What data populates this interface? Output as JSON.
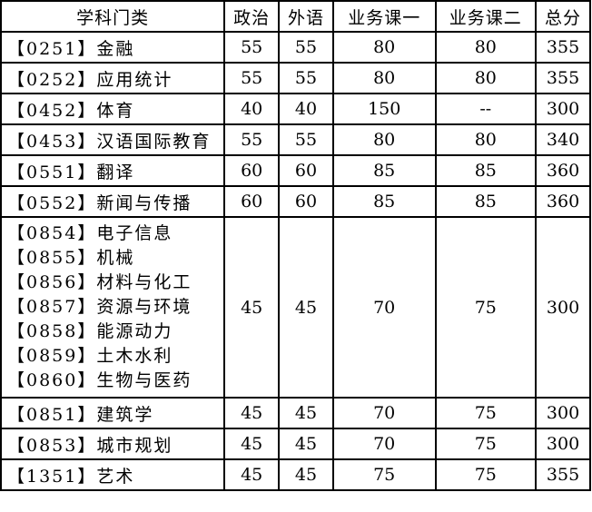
{
  "headers": [
    "学科门类",
    "政治",
    "外语",
    "业务课一",
    "业务课二",
    "总分"
  ],
  "rows": [
    {
      "categories": [
        "【0251】金融"
      ],
      "politics": "55",
      "language": "55",
      "course1": "80",
      "course2": "80",
      "total": "355"
    },
    {
      "categories": [
        "【0252】应用统计"
      ],
      "politics": "55",
      "language": "55",
      "course1": "80",
      "course2": "80",
      "total": "355"
    },
    {
      "categories": [
        "【0452】体育"
      ],
      "politics": "40",
      "language": "40",
      "course1": "150",
      "course2": "--",
      "total": "300"
    },
    {
      "categories": [
        "【0453】汉语国际教育"
      ],
      "politics": "55",
      "language": "55",
      "course1": "80",
      "course2": "80",
      "total": "340"
    },
    {
      "categories": [
        "【0551】翻译"
      ],
      "politics": "60",
      "language": "60",
      "course1": "85",
      "course2": "85",
      "total": "360"
    },
    {
      "categories": [
        "【0552】新闻与传播"
      ],
      "politics": "60",
      "language": "60",
      "course1": "85",
      "course2": "85",
      "total": "360"
    },
    {
      "categories": [
        "【0854】电子信息",
        "【0855】机械",
        "【0856】材料与化工",
        "【0857】资源与环境",
        "【0858】能源动力",
        "【0859】土木水利",
        "【0860】生物与医药"
      ],
      "politics": "45",
      "language": "45",
      "course1": "70",
      "course2": "75",
      "total": "300"
    },
    {
      "categories": [
        "【0851】建筑学"
      ],
      "politics": "45",
      "language": "45",
      "course1": "70",
      "course2": "75",
      "total": "300"
    },
    {
      "categories": [
        "【0853】城市规划"
      ],
      "politics": "45",
      "language": "45",
      "course1": "70",
      "course2": "75",
      "total": "300"
    },
    {
      "categories": [
        "【1351】艺术"
      ],
      "politics": "45",
      "language": "45",
      "course1": "75",
      "course2": "75",
      "total": "355"
    }
  ]
}
